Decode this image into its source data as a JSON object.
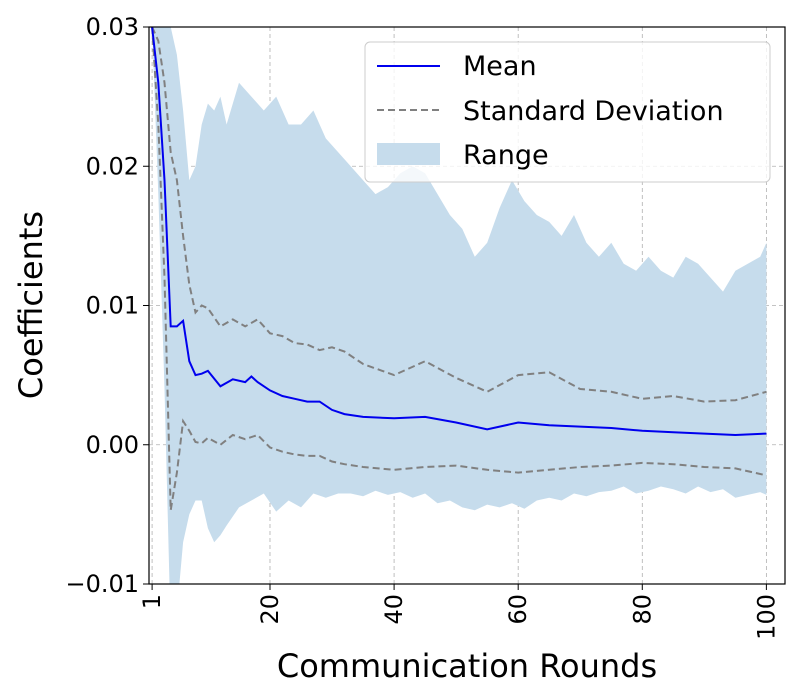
{
  "chart_data": {
    "type": "line",
    "title": "",
    "xlabel": "Communication Rounds",
    "ylabel": "Coefficients",
    "xlim": [
      0.5,
      103
    ],
    "ylim": [
      -0.01,
      0.03
    ],
    "xticks": [
      1,
      20,
      40,
      60,
      80,
      100
    ],
    "xtick_labels": [
      "1",
      "20",
      "40",
      "60",
      "80",
      "100"
    ],
    "yticks": [
      -0.01,
      0.0,
      0.01,
      0.02,
      0.03
    ],
    "ytick_labels": [
      "−0.01",
      "0.00",
      "0.01",
      "0.02",
      "0.03"
    ],
    "grid": true,
    "legend_position": "top-right",
    "legend": [
      {
        "label": "Mean",
        "style": "line"
      },
      {
        "label": "Standard Deviation",
        "style": "dashed"
      },
      {
        "label": "Range",
        "style": "fill"
      }
    ],
    "colors": {
      "mean": "#0000ee",
      "std": "#808080",
      "range": "#c6dcec"
    },
    "series": [
      {
        "name": "Mean",
        "x": [
          1,
          2,
          3,
          4,
          5,
          6,
          7,
          8,
          9,
          10,
          12,
          14,
          16,
          17,
          18,
          20,
          22,
          24,
          26,
          28,
          30,
          32,
          35,
          40,
          45,
          50,
          55,
          60,
          65,
          70,
          75,
          80,
          85,
          90,
          95,
          100
        ],
        "values": [
          0.03,
          0.026,
          0.019,
          0.0085,
          0.0085,
          0.0089,
          0.006,
          0.005,
          0.0051,
          0.0053,
          0.0042,
          0.0047,
          0.0045,
          0.0049,
          0.0045,
          0.0039,
          0.0035,
          0.0033,
          0.0031,
          0.0031,
          0.0025,
          0.0022,
          0.002,
          0.0019,
          0.002,
          0.0016,
          0.0011,
          0.0016,
          0.0014,
          0.0013,
          0.0012,
          0.001,
          0.0009,
          0.0008,
          0.0007,
          0.0008
        ]
      },
      {
        "name": "Standard Deviation (upper)",
        "x": [
          1,
          2,
          3,
          4,
          5,
          6,
          7,
          8,
          9,
          10,
          12,
          14,
          16,
          18,
          20,
          22,
          24,
          26,
          28,
          30,
          32,
          35,
          40,
          45,
          50,
          55,
          60,
          65,
          70,
          75,
          80,
          85,
          90,
          95,
          100
        ],
        "values": [
          0.03,
          0.029,
          0.026,
          0.021,
          0.019,
          0.015,
          0.0115,
          0.0095,
          0.01,
          0.0098,
          0.0085,
          0.009,
          0.0085,
          0.009,
          0.008,
          0.0078,
          0.0073,
          0.0072,
          0.0068,
          0.007,
          0.0067,
          0.0058,
          0.005,
          0.006,
          0.0048,
          0.0038,
          0.005,
          0.0052,
          0.004,
          0.0038,
          0.0033,
          0.0035,
          0.0031,
          0.0032,
          0.0038
        ]
      },
      {
        "name": "Standard Deviation (lower)",
        "x": [
          1,
          2,
          3,
          4,
          5,
          6,
          7,
          8,
          9,
          10,
          12,
          14,
          16,
          18,
          20,
          22,
          24,
          26,
          28,
          30,
          32,
          35,
          40,
          45,
          50,
          55,
          60,
          65,
          70,
          75,
          80,
          85,
          90,
          95,
          100
        ],
        "values": [
          0.03,
          0.023,
          0.012,
          -0.0047,
          -0.002,
          0.0017,
          0.001,
          0.0002,
          0.0001,
          0.0005,
          0.0,
          0.0007,
          0.0004,
          0.0007,
          -0.0002,
          -0.0005,
          -0.0007,
          -0.0008,
          -0.0008,
          -0.0012,
          -0.0014,
          -0.0016,
          -0.0018,
          -0.0016,
          -0.0015,
          -0.0018,
          -0.002,
          -0.0018,
          -0.0016,
          -0.0015,
          -0.0013,
          -0.0014,
          -0.0016,
          -0.0017,
          -0.0022
        ]
      },
      {
        "name": "Range (upper)",
        "x": [
          1,
          2,
          3,
          4,
          5,
          6,
          7,
          8,
          9,
          10,
          11,
          12,
          13,
          15,
          17,
          19,
          21,
          23,
          25,
          27,
          29,
          31,
          33,
          35,
          37,
          39,
          41,
          43,
          45,
          47,
          49,
          51,
          53,
          55,
          57,
          59,
          61,
          63,
          65,
          67,
          69,
          71,
          73,
          75,
          77,
          79,
          81,
          83,
          85,
          87,
          89,
          91,
          93,
          95,
          97,
          99,
          100
        ],
        "values": [
          0.03,
          0.03,
          0.03,
          0.03,
          0.028,
          0.024,
          0.019,
          0.02,
          0.023,
          0.0245,
          0.024,
          0.025,
          0.023,
          0.026,
          0.025,
          0.024,
          0.025,
          0.023,
          0.023,
          0.024,
          0.022,
          0.021,
          0.02,
          0.019,
          0.018,
          0.0185,
          0.0195,
          0.02,
          0.0195,
          0.018,
          0.0165,
          0.0155,
          0.0135,
          0.0145,
          0.017,
          0.019,
          0.0175,
          0.0165,
          0.016,
          0.015,
          0.0165,
          0.0145,
          0.0135,
          0.0145,
          0.013,
          0.0125,
          0.0135,
          0.0125,
          0.012,
          0.0135,
          0.013,
          0.012,
          0.011,
          0.0125,
          0.013,
          0.0135,
          0.0145
        ]
      },
      {
        "name": "Range (lower)",
        "x": [
          1,
          2,
          3,
          3.8,
          4.5,
          5,
          6,
          7,
          8,
          9,
          10,
          11,
          12,
          13,
          15,
          17,
          19,
          21,
          23,
          25,
          27,
          29,
          31,
          33,
          35,
          37,
          39,
          41,
          43,
          45,
          47,
          49,
          51,
          53,
          55,
          57,
          59,
          61,
          63,
          65,
          67,
          69,
          71,
          73,
          75,
          77,
          79,
          81,
          83,
          85,
          87,
          89,
          91,
          93,
          95,
          97,
          99,
          100
        ],
        "values": [
          0.03,
          0.018,
          0.004,
          -0.01,
          -0.011,
          -0.012,
          -0.007,
          -0.005,
          -0.004,
          -0.004,
          -0.006,
          -0.007,
          -0.0065,
          -0.0058,
          -0.0045,
          -0.004,
          -0.0035,
          -0.0048,
          -0.004,
          -0.0045,
          -0.0035,
          -0.0038,
          -0.0035,
          -0.0035,
          -0.0037,
          -0.0033,
          -0.0036,
          -0.0034,
          -0.0038,
          -0.0035,
          -0.0042,
          -0.004,
          -0.0045,
          -0.0047,
          -0.0043,
          -0.0045,
          -0.0042,
          -0.0046,
          -0.004,
          -0.0038,
          -0.004,
          -0.0035,
          -0.0037,
          -0.0034,
          -0.0033,
          -0.003,
          -0.0035,
          -0.0033,
          -0.003,
          -0.0032,
          -0.0035,
          -0.003,
          -0.0034,
          -0.0032,
          -0.0038,
          -0.0036,
          -0.0034,
          -0.0036
        ]
      }
    ]
  }
}
